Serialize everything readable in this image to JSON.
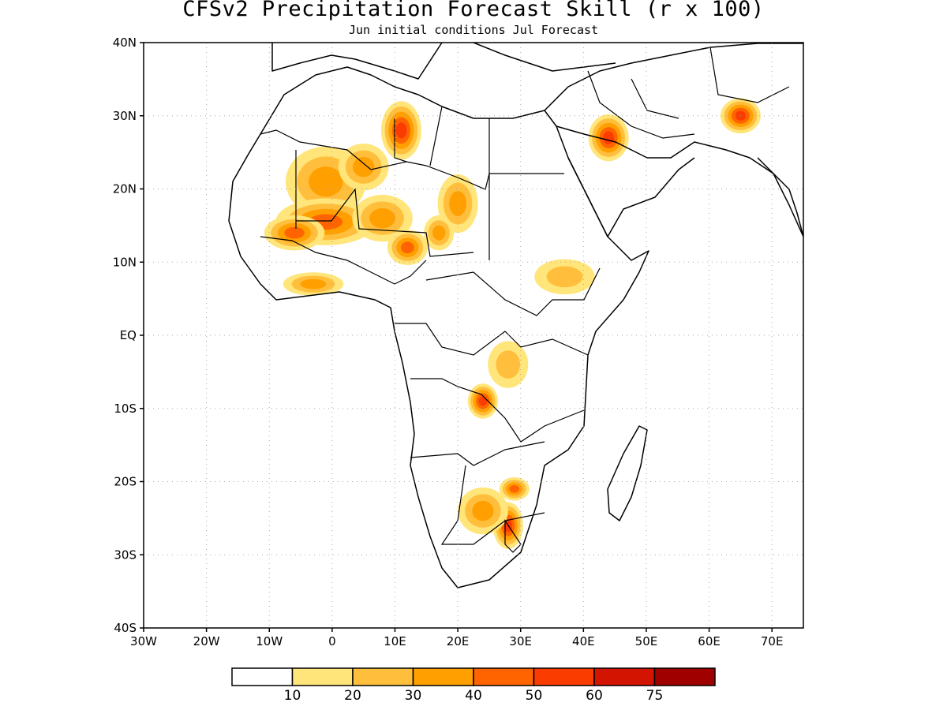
{
  "header": {
    "title": "CFSv2 Precipitation Forecast Skill (r x 100)",
    "subtitle": "Jun initial conditions  Jul Forecast"
  },
  "axes": {
    "lon_range": [
      -30,
      75
    ],
    "lat_range": [
      -40,
      40
    ],
    "x_ticks": [
      {
        "value": -30,
        "label": "30W"
      },
      {
        "value": -20,
        "label": "20W"
      },
      {
        "value": -10,
        "label": "10W"
      },
      {
        "value": 0,
        "label": "0"
      },
      {
        "value": 10,
        "label": "10E"
      },
      {
        "value": 20,
        "label": "20E"
      },
      {
        "value": 30,
        "label": "30E"
      },
      {
        "value": 40,
        "label": "40E"
      },
      {
        "value": 50,
        "label": "50E"
      },
      {
        "value": 60,
        "label": "60E"
      },
      {
        "value": 70,
        "label": "70E"
      }
    ],
    "y_ticks": [
      {
        "value": 40,
        "label": "40N"
      },
      {
        "value": 30,
        "label": "30N"
      },
      {
        "value": 20,
        "label": "20N"
      },
      {
        "value": 10,
        "label": "10N"
      },
      {
        "value": 0,
        "label": "EQ"
      },
      {
        "value": -10,
        "label": "10S"
      },
      {
        "value": -20,
        "label": "20S"
      },
      {
        "value": -30,
        "label": "30S"
      },
      {
        "value": -40,
        "label": "40S"
      }
    ],
    "grid": "dotted"
  },
  "colorbar": {
    "levels": [
      "10",
      "20",
      "30",
      "40",
      "50",
      "60",
      "75"
    ],
    "colors": [
      "#ffffff",
      "#ffe57a",
      "#ffbe3c",
      "#ffa000",
      "#ff6400",
      "#fa3c00",
      "#d21400",
      "#a00000"
    ]
  },
  "skill_regions": [
    {
      "lon": -1,
      "lat": 21,
      "rx": 4,
      "ry": 3,
      "level": 3
    },
    {
      "lon": -1,
      "lat": 15.5,
      "rx": 5,
      "ry": 2,
      "level": 4
    },
    {
      "lon": -6,
      "lat": 14,
      "rx": 3,
      "ry": 1.5,
      "level": 4
    },
    {
      "lon": 8,
      "lat": 16,
      "rx": 3,
      "ry": 2,
      "level": 3
    },
    {
      "lon": 11,
      "lat": 28,
      "rx": 2,
      "ry": 2.5,
      "level": 5
    },
    {
      "lon": 12,
      "lat": 12,
      "rx": 2,
      "ry": 1.5,
      "level": 4
    },
    {
      "lon": 5,
      "lat": 23,
      "rx": 2.5,
      "ry": 2,
      "level": 3
    },
    {
      "lon": 20,
      "lat": 18,
      "rx": 2,
      "ry": 2.5,
      "level": 3
    },
    {
      "lon": 44,
      "lat": 27,
      "rx": 2,
      "ry": 2,
      "level": 5
    },
    {
      "lon": 65,
      "lat": 30,
      "rx": 2,
      "ry": 1.5,
      "level": 5
    },
    {
      "lon": 24,
      "lat": -9,
      "rx": 1.5,
      "ry": 1.5,
      "level": 5
    },
    {
      "lon": 28,
      "lat": -26,
      "rx": 1.5,
      "ry": 2,
      "level": 5
    },
    {
      "lon": 29,
      "lat": -21,
      "rx": 1.5,
      "ry": 1,
      "level": 4
    },
    {
      "lon": 24,
      "lat": -24,
      "rx": 2.5,
      "ry": 2,
      "level": 3
    },
    {
      "lon": 37,
      "lat": 8,
      "rx": 3,
      "ry": 1.5,
      "level": 2
    },
    {
      "lon": 28,
      "lat": -4,
      "rx": 2,
      "ry": 2,
      "level": 2
    },
    {
      "lon": -3,
      "lat": 7,
      "rx": 3,
      "ry": 1,
      "level": 3
    },
    {
      "lon": 17,
      "lat": 14,
      "rx": 1.5,
      "ry": 1.5,
      "level": 3
    }
  ]
}
